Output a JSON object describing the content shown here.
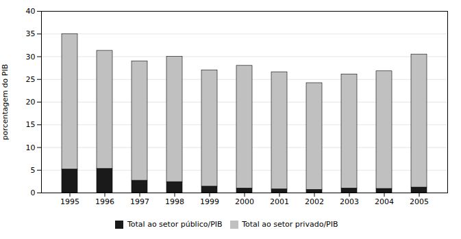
{
  "chart_data": {
    "type": "bar",
    "stacked": true,
    "categories": [
      "1995",
      "1996",
      "1997",
      "1998",
      "1999",
      "2000",
      "2001",
      "2002",
      "2003",
      "2004",
      "2005"
    ],
    "series": [
      {
        "name": "Total ao setor público/PIB",
        "color": "#1a1a1a",
        "values": [
          5.2,
          5.3,
          2.7,
          2.4,
          1.4,
          1.0,
          0.8,
          0.7,
          1.0,
          0.9,
          1.2
        ]
      },
      {
        "name": "Total ao setor privado/PIB",
        "color": "#c0c0c0",
        "values": [
          29.8,
          26.0,
          26.3,
          27.6,
          25.6,
          27.0,
          25.8,
          23.5,
          25.1,
          25.9,
          29.3
        ]
      }
    ],
    "ylabel": "porcentagem do PIB",
    "ylim": [
      0,
      40
    ],
    "yticks": [
      0,
      5,
      10,
      15,
      20,
      25,
      30,
      35,
      40
    ],
    "grid": true,
    "legend": "bottom"
  }
}
